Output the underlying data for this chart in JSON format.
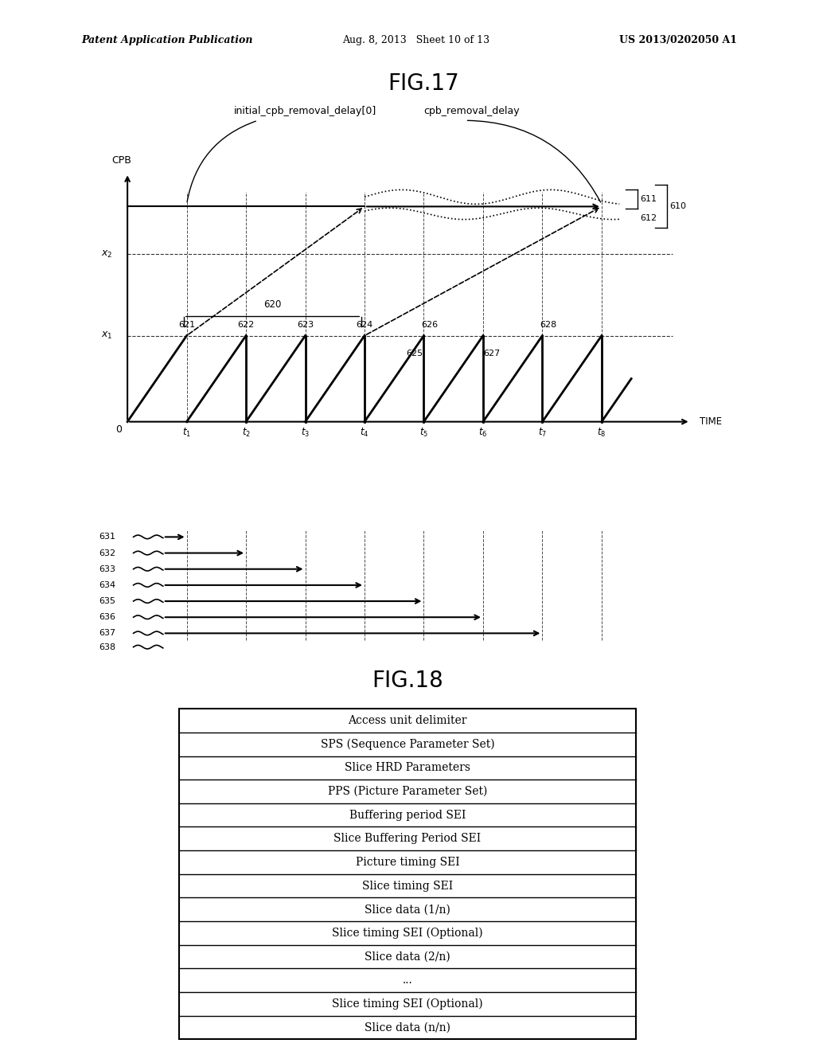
{
  "bg_color": "#ffffff",
  "header_left": "Patent Application Publication",
  "header_mid": "Aug. 8, 2013   Sheet 10 of 13",
  "header_right": "US 2013/0202050 A1",
  "fig17_title": "FIG.17",
  "fig18_title": "FIG.18",
  "fig18_rows": [
    "Access unit delimiter",
    "SPS (Sequence Parameter Set)",
    "Slice HRD Parameters",
    "PPS (Picture Parameter Set)",
    "Buffering period SEI",
    "Slice Buffering Period SEI",
    "Picture timing SEI",
    "Slice timing SEI",
    "Slice data (1/n)",
    "Slice timing SEI (Optional)",
    "Slice data (2/n)",
    "...",
    "Slice timing SEI (Optional)",
    "Slice data (n/n)"
  ]
}
